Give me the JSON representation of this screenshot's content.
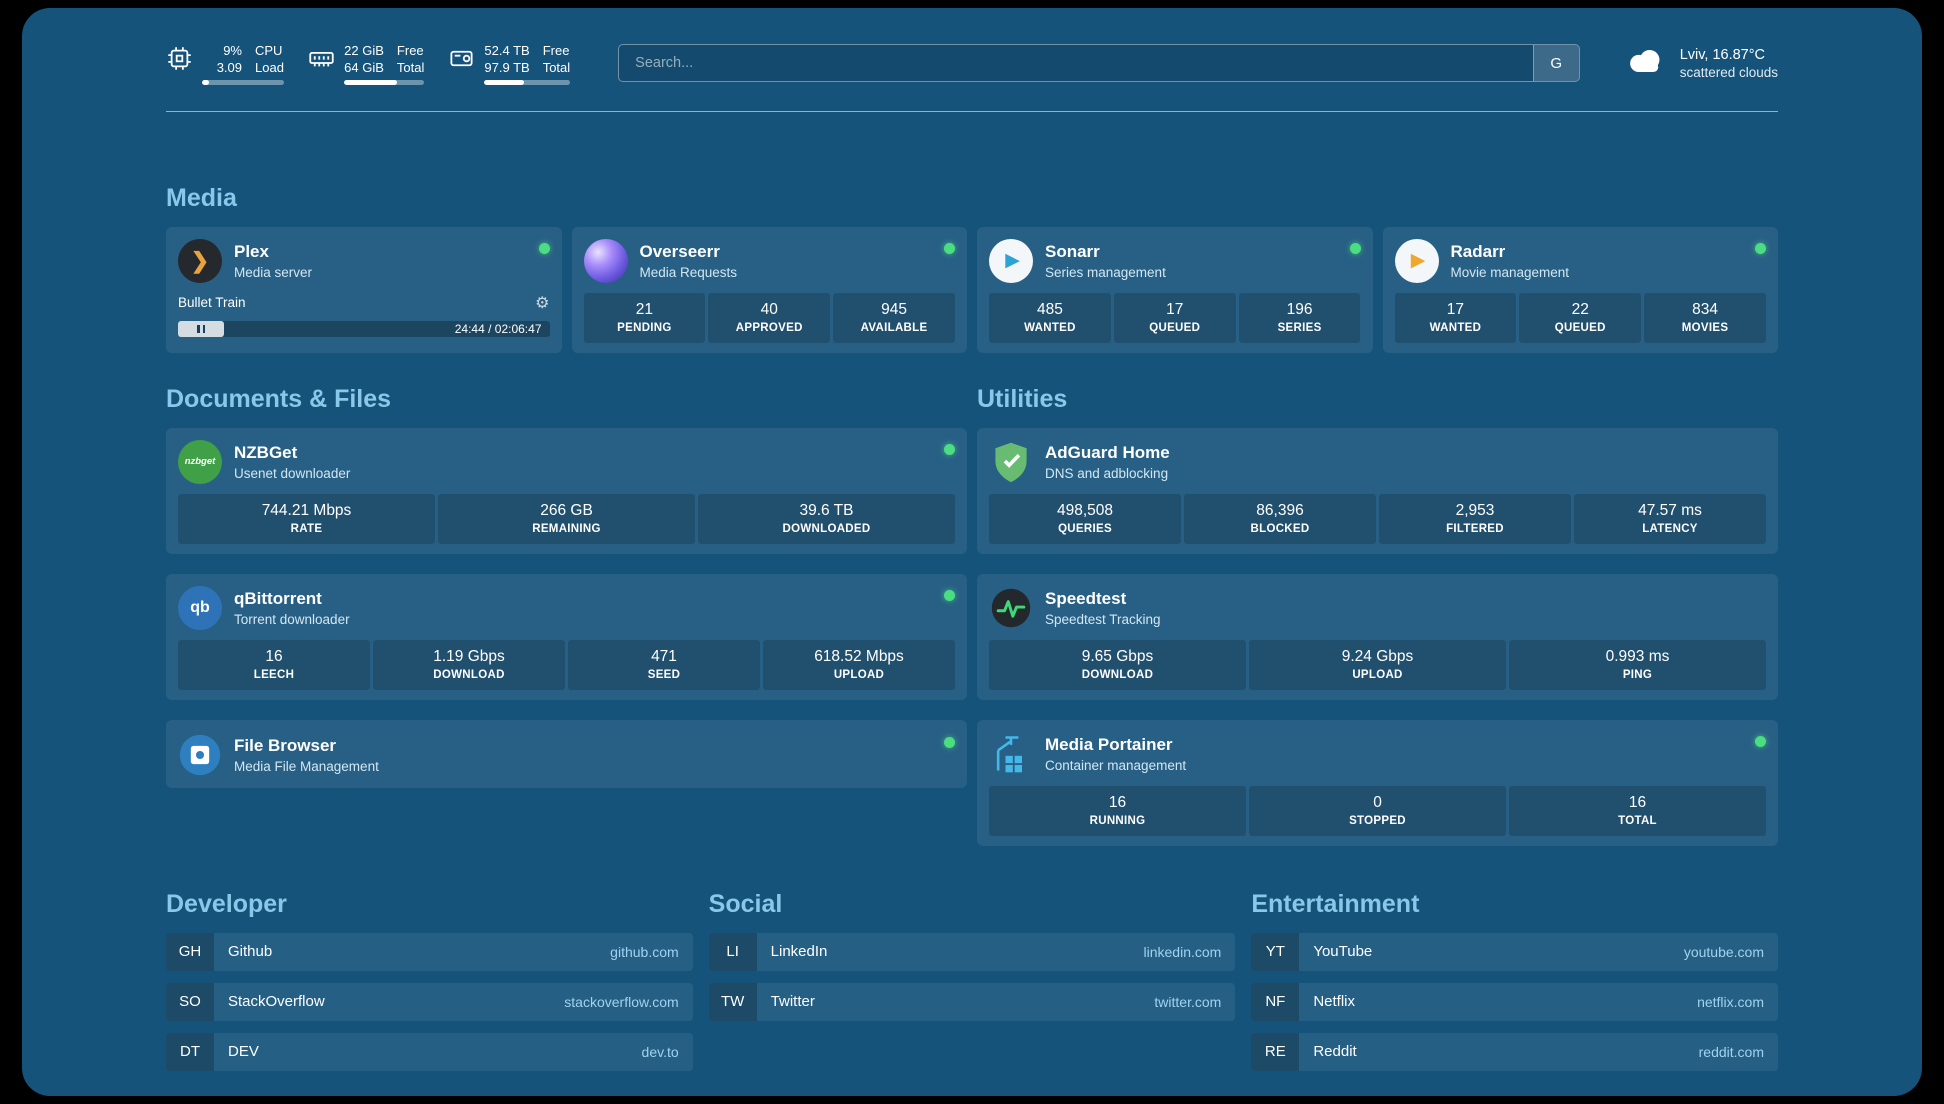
{
  "header": {
    "cpu": {
      "value1": "9%",
      "value2": "3.09",
      "label1": "CPU",
      "label2": "Load",
      "progress": 9
    },
    "memory": {
      "value1": "22 GiB",
      "value2": "64 GiB",
      "label1": "Free",
      "label2": "Total",
      "progress": 66
    },
    "disk": {
      "value1": "52.4 TB",
      "value2": "97.9 TB",
      "label1": "Free",
      "label2": "Total",
      "progress": 46
    },
    "search": {
      "placeholder": "Search...",
      "button": "G"
    },
    "weather": {
      "location": "Lviv, 16.87°C",
      "condition": "scattered clouds"
    }
  },
  "media": {
    "title": "Media",
    "plex": {
      "name": "Plex",
      "desc": "Media server",
      "now_playing": "Bullet Train",
      "time": "24:44 / 02:06:47"
    },
    "overseerr": {
      "name": "Overseerr",
      "desc": "Media Requests",
      "stats": [
        {
          "value": "21",
          "label": "PENDING"
        },
        {
          "value": "40",
          "label": "APPROVED"
        },
        {
          "value": "945",
          "label": "AVAILABLE"
        }
      ]
    },
    "sonarr": {
      "name": "Sonarr",
      "desc": "Series management",
      "stats": [
        {
          "value": "485",
          "label": "WANTED"
        },
        {
          "value": "17",
          "label": "QUEUED"
        },
        {
          "value": "196",
          "label": "SERIES"
        }
      ]
    },
    "radarr": {
      "name": "Radarr",
      "desc": "Movie management",
      "stats": [
        {
          "value": "17",
          "label": "WANTED"
        },
        {
          "value": "22",
          "label": "QUEUED"
        },
        {
          "value": "834",
          "label": "MOVIES"
        }
      ]
    }
  },
  "documents": {
    "title": "Documents & Files",
    "nzbget": {
      "name": "NZBGet",
      "desc": "Usenet downloader",
      "stats": [
        {
          "value": "744.21 Mbps",
          "label": "RATE"
        },
        {
          "value": "266 GB",
          "label": "REMAINING"
        },
        {
          "value": "39.6 TB",
          "label": "DOWNLOADED"
        }
      ]
    },
    "qbittorrent": {
      "name": "qBittorrent",
      "desc": "Torrent downloader",
      "stats": [
        {
          "value": "16",
          "label": "LEECH"
        },
        {
          "value": "1.19 Gbps",
          "label": "DOWNLOAD"
        },
        {
          "value": "471",
          "label": "SEED"
        },
        {
          "value": "618.52 Mbps",
          "label": "UPLOAD"
        }
      ]
    },
    "filebrowser": {
      "name": "File Browser",
      "desc": "Media File Management"
    }
  },
  "utilities": {
    "title": "Utilities",
    "adguard": {
      "name": "AdGuard Home",
      "desc": "DNS and adblocking",
      "stats": [
        {
          "value": "498,508",
          "label": "QUERIES"
        },
        {
          "value": "86,396",
          "label": "BLOCKED"
        },
        {
          "value": "2,953",
          "label": "FILTERED"
        },
        {
          "value": "47.57 ms",
          "label": "LATENCY"
        }
      ]
    },
    "speedtest": {
      "name": "Speedtest",
      "desc": "Speedtest Tracking",
      "stats": [
        {
          "value": "9.65 Gbps",
          "label": "DOWNLOAD"
        },
        {
          "value": "9.24 Gbps",
          "label": "UPLOAD"
        },
        {
          "value": "0.993 ms",
          "label": "PING"
        }
      ]
    },
    "portainer": {
      "name": "Media Portainer",
      "desc": "Container management",
      "stats": [
        {
          "value": "16",
          "label": "RUNNING"
        },
        {
          "value": "0",
          "label": "STOPPED"
        },
        {
          "value": "16",
          "label": "TOTAL"
        }
      ]
    }
  },
  "bookmarks": {
    "developer": {
      "title": "Developer",
      "items": [
        {
          "abbr": "GH",
          "name": "Github",
          "url": "github.com"
        },
        {
          "abbr": "SO",
          "name": "StackOverflow",
          "url": "stackoverflow.com"
        },
        {
          "abbr": "DT",
          "name": "DEV",
          "url": "dev.to"
        }
      ]
    },
    "social": {
      "title": "Social",
      "items": [
        {
          "abbr": "LI",
          "name": "LinkedIn",
          "url": "linkedin.com"
        },
        {
          "abbr": "TW",
          "name": "Twitter",
          "url": "twitter.com"
        }
      ]
    },
    "entertainment": {
      "title": "Entertainment",
      "items": [
        {
          "abbr": "YT",
          "name": "YouTube",
          "url": "youtube.com"
        },
        {
          "abbr": "NF",
          "name": "Netflix",
          "url": "netflix.com"
        },
        {
          "abbr": "RE",
          "name": "Reddit",
          "url": "reddit.com"
        }
      ]
    }
  },
  "icons": {
    "plex_glyph": "❯",
    "play_glyph": "▶",
    "gear_glyph": "⚙",
    "nzbget_label": "nzbget",
    "qbittorrent_label": "qb"
  },
  "colors": {
    "background": "#16537b",
    "section_title": "#8bc7e9",
    "status_online": "#4ade80",
    "bookmark_url": "#9fd3ef",
    "plex_orange": "#e8a33d",
    "sonarr_blue": "#2ba3d4",
    "radarr_orange": "#f0a72e",
    "nzbget_green": "#3fa047",
    "qbittorrent_blue": "#2e73b8",
    "adguard_green": "#68bc71",
    "speedtest_green": "#3fd97c",
    "portainer_blue": "#45b8ea"
  }
}
